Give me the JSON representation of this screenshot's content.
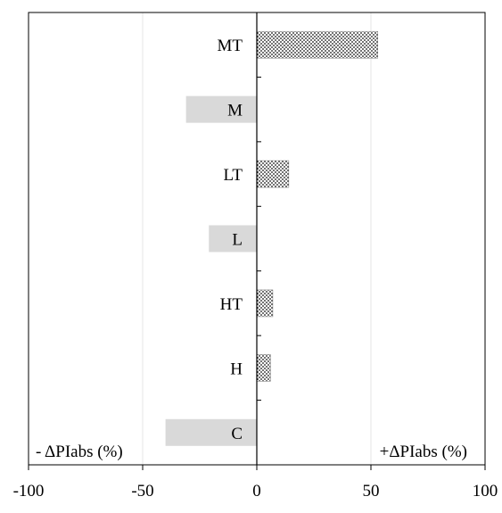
{
  "chart_data": {
    "type": "bar",
    "orientation": "horizontal",
    "categories": [
      "MT",
      "M",
      "LT",
      "L",
      "HT",
      "H",
      "C"
    ],
    "values": [
      53,
      -31,
      14,
      -21,
      7,
      6,
      -40
    ],
    "xlim": [
      -100,
      100
    ],
    "xticks": [
      -100,
      -50,
      0,
      50,
      100
    ],
    "xtick_labels": [
      "-100",
      "-50",
      "0",
      "50",
      "100"
    ],
    "left_label": "- ΔPIabs (%)",
    "right_label": "+ΔPIabs (%)",
    "grid": "vertical",
    "colors": {
      "negative_fill": "#d9d9d9",
      "positive_pattern": "dotted",
      "axis": "#000000",
      "grid": "#e6e6e6"
    }
  }
}
